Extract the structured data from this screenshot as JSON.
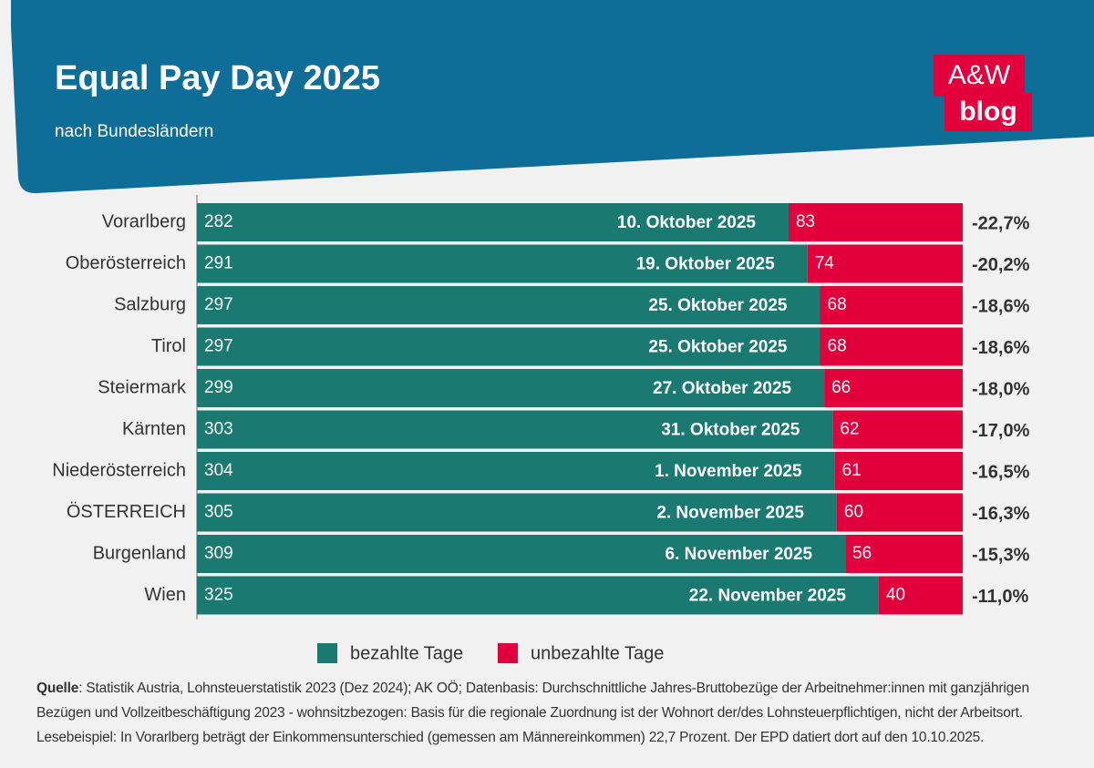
{
  "chart_data": {
    "type": "bar",
    "orientation": "horizontal",
    "stacked": true,
    "title": "Equal Pay Day 2025",
    "subtitle": "nach Bundesländern",
    "categories": [
      "Vorarlberg",
      "Oberösterreich",
      "Salzburg",
      "Tirol",
      "Steiermark",
      "Kärnten",
      "Niederösterreich",
      "ÖSTERREICH",
      "Burgenland",
      "Wien"
    ],
    "series": [
      {
        "name": "bezahlte Tage",
        "color": "#1a7a72",
        "values": [
          282,
          291,
          297,
          297,
          299,
          303,
          304,
          305,
          309,
          325
        ]
      },
      {
        "name": "unbezahlte Tage",
        "color": "#e2003c",
        "values": [
          83,
          74,
          68,
          68,
          66,
          62,
          61,
          60,
          56,
          40
        ]
      }
    ],
    "date_labels": [
      "10. Oktober 2025",
      "19. Oktober 2025",
      "25. Oktober 2025",
      "25. Oktober 2025",
      "27. Oktober 2025",
      "31. Oktober 2025",
      "1. November 2025",
      "2. November 2025",
      "6. November 2025",
      "22. November 2025"
    ],
    "gap_values": [
      -22.7,
      -20.2,
      -18.6,
      -18.6,
      -18.0,
      -17.0,
      -16.5,
      -16.3,
      -15.3,
      -11.0
    ],
    "gap_labels": [
      "-22,7%",
      "-20,2%",
      "-18,6%",
      "-18,6%",
      "-18,0%",
      "-17,0%",
      "-16,5%",
      "-16,3%",
      "-15,3%",
      "-11,0%"
    ],
    "xlim": [
      0,
      365
    ],
    "legend": "bottom"
  },
  "logo": {
    "line1": "A&W",
    "line2": "blog"
  },
  "source": {
    "label": "Quelle",
    "text": ": Statistik Austria, Lohnsteuerstatistik 2023 (Dez 2024); AK OÖ; Datenbasis: Durchschnittliche Jahres-Bruttobezüge der Arbeitnehmer:innen mit ganzjährigen Bezügen und Vollzeitbeschäftigung 2023 - wohnsitzbezogen: Basis für die regionale Zuordnung ist der Wohnort der/des Lohnsteuerpflichtigen, nicht der Arbeitsort."
  },
  "example": "Lesebeispiel: In Vorarlberg beträgt der Einkommensunterschied (gemessen am Männereinkommen) 22,7 Prozent. Der EPD datiert dort auf den 10.10.2025."
}
